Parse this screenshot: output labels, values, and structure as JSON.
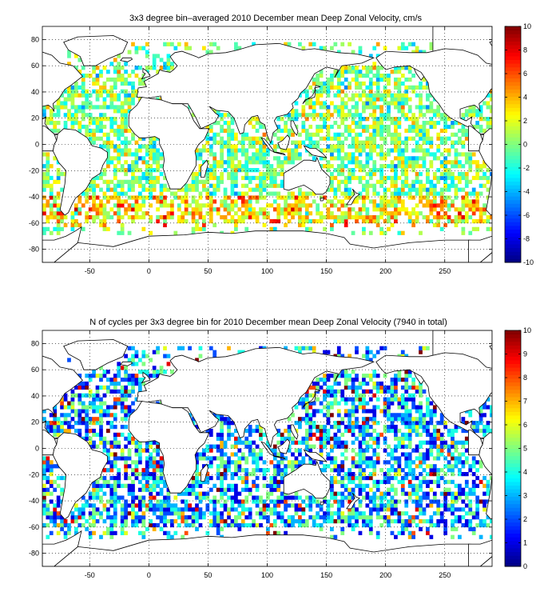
{
  "chart_data": [
    {
      "type": "heatmap",
      "title": "3x3 degree bin–averaged 2010 December mean Deep Zonal Velocity, cm/s",
      "xlabel": "",
      "ylabel": "",
      "xlim": [
        -90,
        290
      ],
      "ylim": [
        -90,
        90
      ],
      "x_ticks": [
        -50,
        0,
        50,
        100,
        150,
        200,
        250
      ],
      "y_ticks": [
        -80,
        -60,
        -40,
        -20,
        0,
        20,
        40,
        60,
        80
      ],
      "grid": true,
      "colorbar": {
        "min": -10,
        "max": 10,
        "ticks": [
          -10,
          -8,
          -6,
          -4,
          -2,
          0,
          2,
          4,
          6,
          8,
          10
        ]
      },
      "bin_size_deg": 3,
      "colormap": "jet"
    },
    {
      "type": "heatmap",
      "title": "N of cycles per 3x3 degree bin for 2010 December mean Deep Zonal Velocity (7940 in total)",
      "xlabel": "",
      "ylabel": "",
      "xlim": [
        -90,
        290
      ],
      "ylim": [
        -90,
        90
      ],
      "x_ticks": [
        -50,
        0,
        50,
        100,
        150,
        200,
        250
      ],
      "y_ticks": [
        -80,
        -60,
        -40,
        -20,
        0,
        20,
        40,
        60,
        80
      ],
      "grid": true,
      "colorbar": {
        "min": 0,
        "max": 10,
        "ticks": [
          0,
          1,
          2,
          3,
          4,
          5,
          6,
          7,
          8,
          9,
          10
        ]
      },
      "bin_size_deg": 3,
      "colormap": "jet"
    }
  ]
}
